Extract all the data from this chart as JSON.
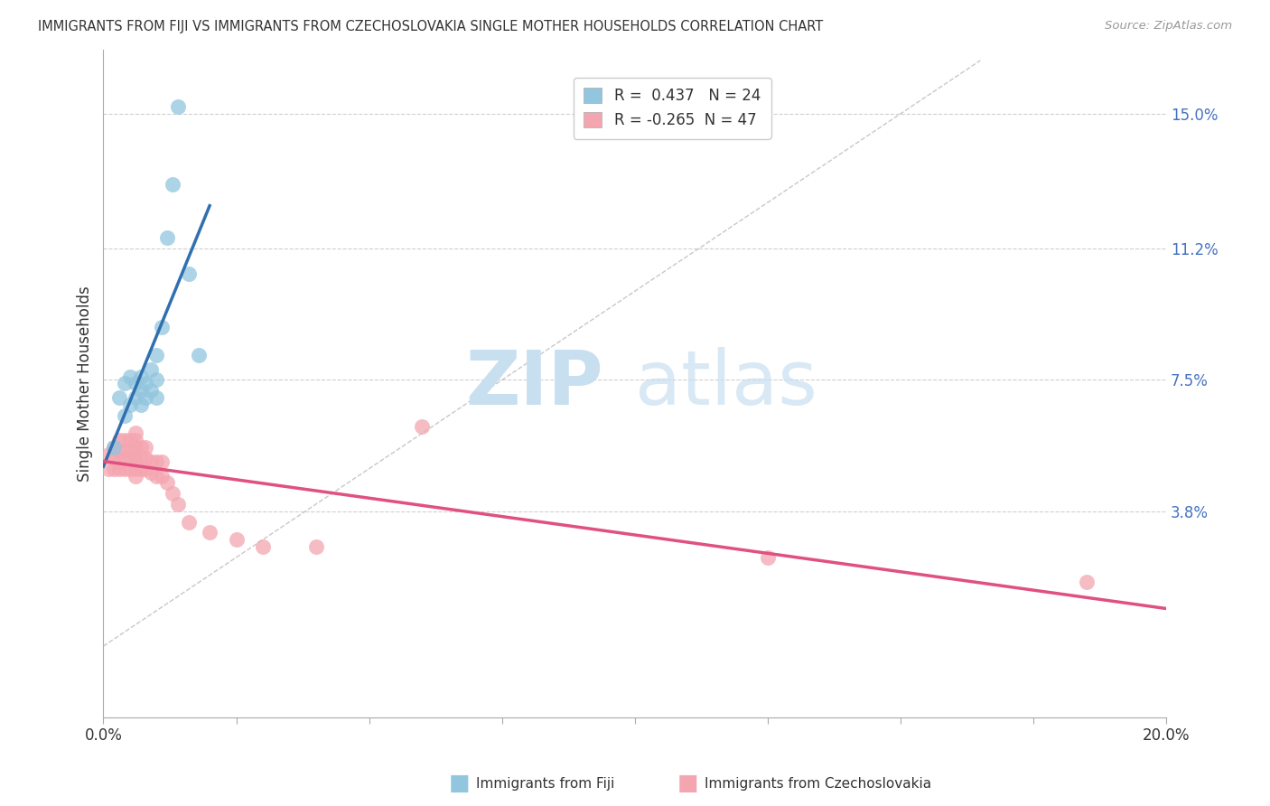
{
  "title": "IMMIGRANTS FROM FIJI VS IMMIGRANTS FROM CZECHOSLOVAKIA SINGLE MOTHER HOUSEHOLDS CORRELATION CHART",
  "source": "Source: ZipAtlas.com",
  "ylabel": "Single Mother Households",
  "xlim": [
    0.0,
    0.2
  ],
  "ylim": [
    -0.02,
    0.168
  ],
  "yticks": [
    0.038,
    0.075,
    0.112,
    0.15
  ],
  "ytick_labels": [
    "3.8%",
    "7.5%",
    "11.2%",
    "15.0%"
  ],
  "xticks": [
    0.0,
    0.025,
    0.05,
    0.075,
    0.1,
    0.125,
    0.15,
    0.175,
    0.2
  ],
  "fiji_R": 0.437,
  "fiji_N": 24,
  "czech_R": -0.265,
  "czech_N": 47,
  "fiji_color": "#92c5de",
  "czech_color": "#f4a6b0",
  "fiji_line_color": "#3070b0",
  "czech_line_color": "#e05080",
  "ref_line_color": "#c8c8c8",
  "background_color": "#ffffff",
  "watermark_zip": "ZIP",
  "watermark_atlas": "atlas",
  "fiji_x": [
    0.002,
    0.003,
    0.004,
    0.004,
    0.005,
    0.005,
    0.006,
    0.006,
    0.007,
    0.007,
    0.007,
    0.008,
    0.008,
    0.009,
    0.009,
    0.01,
    0.01,
    0.01,
    0.011,
    0.012,
    0.013,
    0.014,
    0.016,
    0.018
  ],
  "fiji_y": [
    0.056,
    0.07,
    0.065,
    0.074,
    0.068,
    0.076,
    0.07,
    0.074,
    0.068,
    0.072,
    0.076,
    0.07,
    0.074,
    0.072,
    0.078,
    0.07,
    0.075,
    0.082,
    0.09,
    0.115,
    0.13,
    0.152,
    0.105,
    0.082
  ],
  "czech_x": [
    0.001,
    0.001,
    0.002,
    0.002,
    0.002,
    0.003,
    0.003,
    0.003,
    0.003,
    0.004,
    0.004,
    0.004,
    0.004,
    0.005,
    0.005,
    0.005,
    0.005,
    0.006,
    0.006,
    0.006,
    0.006,
    0.006,
    0.006,
    0.006,
    0.007,
    0.007,
    0.007,
    0.008,
    0.008,
    0.008,
    0.009,
    0.009,
    0.01,
    0.01,
    0.011,
    0.011,
    0.012,
    0.013,
    0.014,
    0.016,
    0.02,
    0.025,
    0.03,
    0.04,
    0.06,
    0.125,
    0.185
  ],
  "czech_y": [
    0.05,
    0.054,
    0.05,
    0.053,
    0.056,
    0.05,
    0.052,
    0.055,
    0.058,
    0.05,
    0.053,
    0.055,
    0.058,
    0.05,
    0.053,
    0.055,
    0.058,
    0.048,
    0.05,
    0.052,
    0.054,
    0.056,
    0.058,
    0.06,
    0.05,
    0.053,
    0.056,
    0.05,
    0.053,
    0.056,
    0.049,
    0.052,
    0.048,
    0.052,
    0.048,
    0.052,
    0.046,
    0.043,
    0.04,
    0.035,
    0.032,
    0.03,
    0.028,
    0.028,
    0.062,
    0.025,
    0.018
  ]
}
